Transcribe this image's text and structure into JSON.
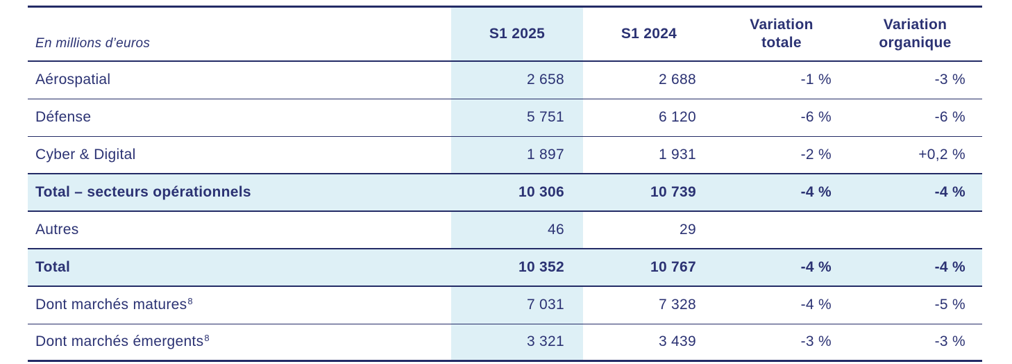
{
  "colors": {
    "navy_text": "#2b3273",
    "navy_line": "#232b66",
    "light_blue": "#def0f6",
    "background": "#ffffff"
  },
  "table": {
    "unit_label": "En millions d’euros",
    "columns": [
      {
        "lines": [
          "S1 2025",
          ""
        ]
      },
      {
        "lines": [
          "S1 2024",
          ""
        ]
      },
      {
        "lines": [
          "Variation",
          "totale"
        ]
      },
      {
        "lines": [
          "Variation",
          "organique"
        ]
      }
    ],
    "rows": [
      {
        "label": "Aérospatial",
        "sup": "",
        "s1_2025": "2 658",
        "s1_2024": "2 688",
        "variation_totale": "-1 %",
        "variation_organique": "-3 %",
        "emphasis": false
      },
      {
        "label": "Défense",
        "sup": "",
        "s1_2025": "5 751",
        "s1_2024": "6 120",
        "variation_totale": "-6 %",
        "variation_organique": "-6 %",
        "emphasis": false
      },
      {
        "label": "Cyber & Digital",
        "sup": "",
        "s1_2025": "1 897",
        "s1_2024": "1 931",
        "variation_totale": "-2 %",
        "variation_organique": "+0,2 %",
        "emphasis": false
      },
      {
        "label": "Total – secteurs opérationnels",
        "sup": "",
        "s1_2025": "10 306",
        "s1_2024": "10 739",
        "variation_totale": "-4 %",
        "variation_organique": "-4 %",
        "emphasis": true
      },
      {
        "label": "Autres",
        "sup": "",
        "s1_2025": "46",
        "s1_2024": "29",
        "variation_totale": "",
        "variation_organique": "",
        "emphasis": false
      },
      {
        "label": "Total",
        "sup": "",
        "s1_2025": "10 352",
        "s1_2024": "10 767",
        "variation_totale": "-4 %",
        "variation_organique": "-4 %",
        "emphasis": true
      },
      {
        "label": "Dont marchés matures",
        "sup": "8",
        "s1_2025": "7 031",
        "s1_2024": "7 328",
        "variation_totale": "-4 %",
        "variation_organique": "-5 %",
        "emphasis": false
      },
      {
        "label": "Dont marchés émergents",
        "sup": "8",
        "s1_2025": "3 321",
        "s1_2024": "3 439",
        "variation_totale": "-3 %",
        "variation_organique": "-3 %",
        "emphasis": false
      }
    ]
  }
}
